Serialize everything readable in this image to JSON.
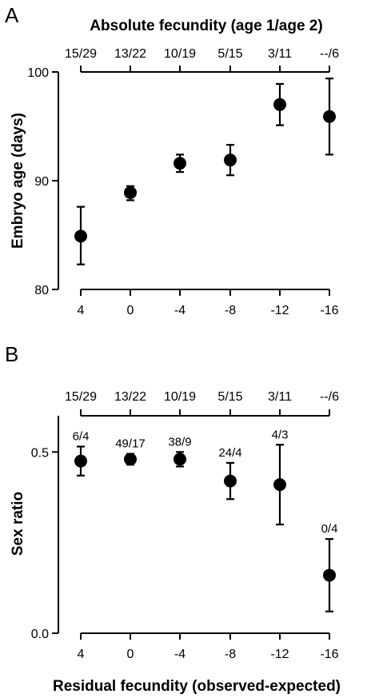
{
  "figure": {
    "panel_a_letter": "A",
    "panel_b_letter": "B",
    "shared_xlabel": "Residual fecundity (observed-expected)"
  },
  "chart_data": [
    {
      "panel": "A",
      "type": "scatter",
      "title": "Absolute fecundity (age 1/age 2)",
      "top_axis_labels": [
        "15/29",
        "13/22",
        "10/19",
        "5/15",
        "3/11",
        "--/6"
      ],
      "x_categories": [
        "4",
        "0",
        "-4",
        "-8",
        "-12",
        "-16"
      ],
      "ylabel": "Embryo age (days)",
      "ylim": [
        80,
        100
      ],
      "yticks": [
        80,
        90,
        100
      ],
      "ytick_labels": [
        "80",
        "90",
        "100"
      ],
      "series": [
        {
          "values": [
            84.9,
            88.9,
            91.6,
            91.9,
            97.0,
            95.9
          ],
          "err_low": [
            82.3,
            88.2,
            90.8,
            90.5,
            95.1,
            92.4
          ],
          "err_high": [
            87.6,
            89.5,
            92.4,
            93.3,
            98.9,
            99.4
          ]
        }
      ]
    },
    {
      "panel": "B",
      "type": "scatter",
      "top_axis_labels": [
        "15/29",
        "13/22",
        "10/19",
        "5/15",
        "3/11",
        "--/6"
      ],
      "x_categories": [
        "4",
        "0",
        "-4",
        "-8",
        "-12",
        "-16"
      ],
      "xlabel": "Residual fecundity (observed-expected)",
      "ylabel": "Sex ratio",
      "ylim": [
        0.0,
        0.6
      ],
      "yticks": [
        0.0,
        0.5
      ],
      "ytick_labels": [
        "0.0",
        "0.5"
      ],
      "point_labels": [
        "6/4",
        "49/17",
        "38/9",
        "24/4",
        "4/3",
        "0/4"
      ],
      "series": [
        {
          "values": [
            0.475,
            0.48,
            0.48,
            0.42,
            0.41,
            0.16
          ],
          "err_low": [
            0.435,
            0.465,
            0.46,
            0.37,
            0.3,
            0.06
          ],
          "err_high": [
            0.515,
            0.495,
            0.5,
            0.47,
            0.52,
            0.26
          ]
        }
      ]
    }
  ]
}
